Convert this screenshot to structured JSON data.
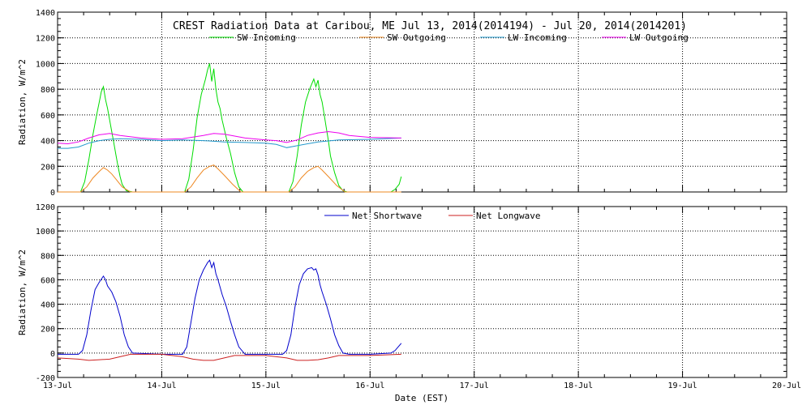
{
  "chart_data": [
    {
      "type": "line",
      "title": "CREST Radiation Data at Caribou, ME   Jul 13, 2014(2014194) - Jul 20, 2014(2014201)",
      "xlabel": "",
      "ylabel": "Radiation, W/m^2",
      "xlim": [
        0,
        7
      ],
      "ylim": [
        0,
        1400
      ],
      "yticks": [
        0,
        200,
        400,
        600,
        800,
        1000,
        1200,
        1400
      ],
      "grid": true,
      "legend_position": "top",
      "x_unit": "days since 13-Jul 00:00 EST",
      "series": [
        {
          "name": "SW Incoming",
          "color": "#00dd00",
          "x": [
            0,
            0.22,
            0.26,
            0.3,
            0.34,
            0.38,
            0.4,
            0.42,
            0.44,
            0.46,
            0.48,
            0.5,
            0.52,
            0.54,
            0.56,
            0.58,
            0.6,
            0.62,
            0.66,
            0.72,
            1.0,
            1.22,
            1.26,
            1.3,
            1.34,
            1.38,
            1.42,
            1.44,
            1.46,
            1.48,
            1.5,
            1.52,
            1.54,
            1.56,
            1.58,
            1.62,
            1.66,
            1.7,
            1.74,
            1.78,
            2.0,
            2.22,
            2.26,
            2.3,
            2.34,
            2.38,
            2.42,
            2.46,
            2.48,
            2.5,
            2.52,
            2.54,
            2.56,
            2.58,
            2.6,
            2.62,
            2.66,
            2.7,
            2.74,
            2.78,
            3.0,
            3.2,
            3.24,
            3.28,
            3.3
          ],
          "values": [
            0,
            0,
            80,
            250,
            450,
            620,
            700,
            780,
            820,
            720,
            650,
            560,
            470,
            380,
            290,
            200,
            120,
            60,
            10,
            0,
            0,
            0,
            100,
            320,
            580,
            760,
            880,
            950,
            1000,
            860,
            960,
            800,
            700,
            650,
            560,
            420,
            300,
            150,
            40,
            0,
            0,
            0,
            80,
            280,
            520,
            700,
            800,
            880,
            820,
            870,
            760,
            700,
            600,
            500,
            400,
            280,
            150,
            50,
            10,
            0,
            0,
            0,
            20,
            60,
            120
          ]
        },
        {
          "name": "SW Outgoing",
          "color": "#ee8822",
          "x": [
            0,
            0.22,
            0.28,
            0.34,
            0.4,
            0.44,
            0.48,
            0.52,
            0.56,
            0.62,
            0.7,
            1.22,
            1.28,
            1.34,
            1.4,
            1.46,
            1.5,
            1.54,
            1.6,
            1.68,
            1.76,
            2.22,
            2.28,
            2.34,
            2.4,
            2.46,
            2.5,
            2.54,
            2.6,
            2.68,
            2.76,
            3.3
          ],
          "values": [
            0,
            0,
            40,
            110,
            160,
            190,
            170,
            140,
            100,
            40,
            0,
            0,
            40,
            110,
            170,
            200,
            210,
            180,
            130,
            60,
            0,
            0,
            40,
            110,
            160,
            190,
            200,
            170,
            120,
            50,
            0,
            0
          ]
        },
        {
          "name": "LW Incoming",
          "color": "#2299cc",
          "x": [
            0,
            0.1,
            0.2,
            0.3,
            0.4,
            0.5,
            0.6,
            0.8,
            1.0,
            1.2,
            1.4,
            1.5,
            1.6,
            1.8,
            2.0,
            2.1,
            2.2,
            2.3,
            2.5,
            2.7,
            3.0,
            3.3
          ],
          "values": [
            340,
            340,
            350,
            380,
            400,
            410,
            415,
            410,
            400,
            405,
            400,
            395,
            390,
            385,
            380,
            370,
            345,
            360,
            390,
            405,
            410,
            420
          ]
        },
        {
          "name": "LW Outgoing",
          "color": "#ee00ee",
          "x": [
            0,
            0.1,
            0.2,
            0.3,
            0.4,
            0.5,
            0.6,
            0.8,
            1.0,
            1.2,
            1.4,
            1.5,
            1.6,
            1.8,
            2.0,
            2.1,
            2.2,
            2.3,
            2.4,
            2.5,
            2.6,
            2.7,
            2.8,
            3.0,
            3.3
          ],
          "values": [
            380,
            375,
            390,
            420,
            445,
            455,
            440,
            420,
            410,
            415,
            440,
            455,
            450,
            420,
            405,
            400,
            385,
            405,
            440,
            460,
            470,
            460,
            440,
            425,
            420
          ]
        }
      ]
    },
    {
      "type": "line",
      "title": "",
      "xlabel": "Date (EST)",
      "ylabel": "Radiation, W/m^2",
      "xlim": [
        0,
        7
      ],
      "ylim": [
        -200,
        1200
      ],
      "yticks": [
        -200,
        0,
        200,
        400,
        600,
        800,
        1000,
        1200
      ],
      "grid": true,
      "legend_position": "top",
      "categories": [
        "13-Jul",
        "14-Jul",
        "15-Jul",
        "16-Jul",
        "17-Jul",
        "18-Jul",
        "19-Jul",
        "20-Jul"
      ],
      "series": [
        {
          "name": "Net Shortwave",
          "color": "#0000cc",
          "x": [
            0,
            0.2,
            0.24,
            0.28,
            0.32,
            0.36,
            0.4,
            0.44,
            0.46,
            0.48,
            0.52,
            0.56,
            0.6,
            0.64,
            0.68,
            0.72,
            1.0,
            1.2,
            1.24,
            1.28,
            1.32,
            1.36,
            1.4,
            1.44,
            1.46,
            1.48,
            1.5,
            1.52,
            1.54,
            1.58,
            1.62,
            1.66,
            1.7,
            1.74,
            1.8,
            2.0,
            2.16,
            2.2,
            2.24,
            2.28,
            2.32,
            2.36,
            2.4,
            2.44,
            2.46,
            2.48,
            2.5,
            2.52,
            2.54,
            2.58,
            2.62,
            2.66,
            2.7,
            2.74,
            2.8,
            3.0,
            3.2,
            3.24,
            3.28,
            3.3
          ],
          "values": [
            -10,
            -10,
            20,
            150,
            350,
            520,
            580,
            630,
            600,
            550,
            500,
            420,
            300,
            150,
            50,
            0,
            -10,
            -10,
            50,
            250,
            450,
            600,
            680,
            740,
            760,
            700,
            740,
            650,
            600,
            480,
            380,
            260,
            150,
            50,
            -10,
            -10,
            -10,
            20,
            150,
            380,
            560,
            650,
            690,
            700,
            680,
            690,
            640,
            560,
            500,
            400,
            280,
            150,
            60,
            0,
            -10,
            -10,
            0,
            20,
            60,
            80
          ]
        },
        {
          "name": "Net Longwave",
          "color": "#cc2222",
          "x": [
            0,
            0.2,
            0.3,
            0.4,
            0.5,
            0.6,
            0.7,
            1.0,
            1.2,
            1.3,
            1.4,
            1.5,
            1.6,
            1.7,
            2.0,
            2.2,
            2.3,
            2.4,
            2.5,
            2.6,
            2.7,
            3.0,
            3.3
          ],
          "values": [
            -40,
            -50,
            -60,
            -55,
            -50,
            -30,
            -10,
            -10,
            -30,
            -50,
            -60,
            -60,
            -40,
            -20,
            -20,
            -40,
            -60,
            -60,
            -55,
            -40,
            -20,
            -20,
            -10
          ]
        }
      ]
    }
  ],
  "x_tick_labels": [
    "13-Jul",
    "14-Jul",
    "15-Jul",
    "16-Jul",
    "17-Jul",
    "18-Jul",
    "19-Jul",
    "20-Jul"
  ]
}
